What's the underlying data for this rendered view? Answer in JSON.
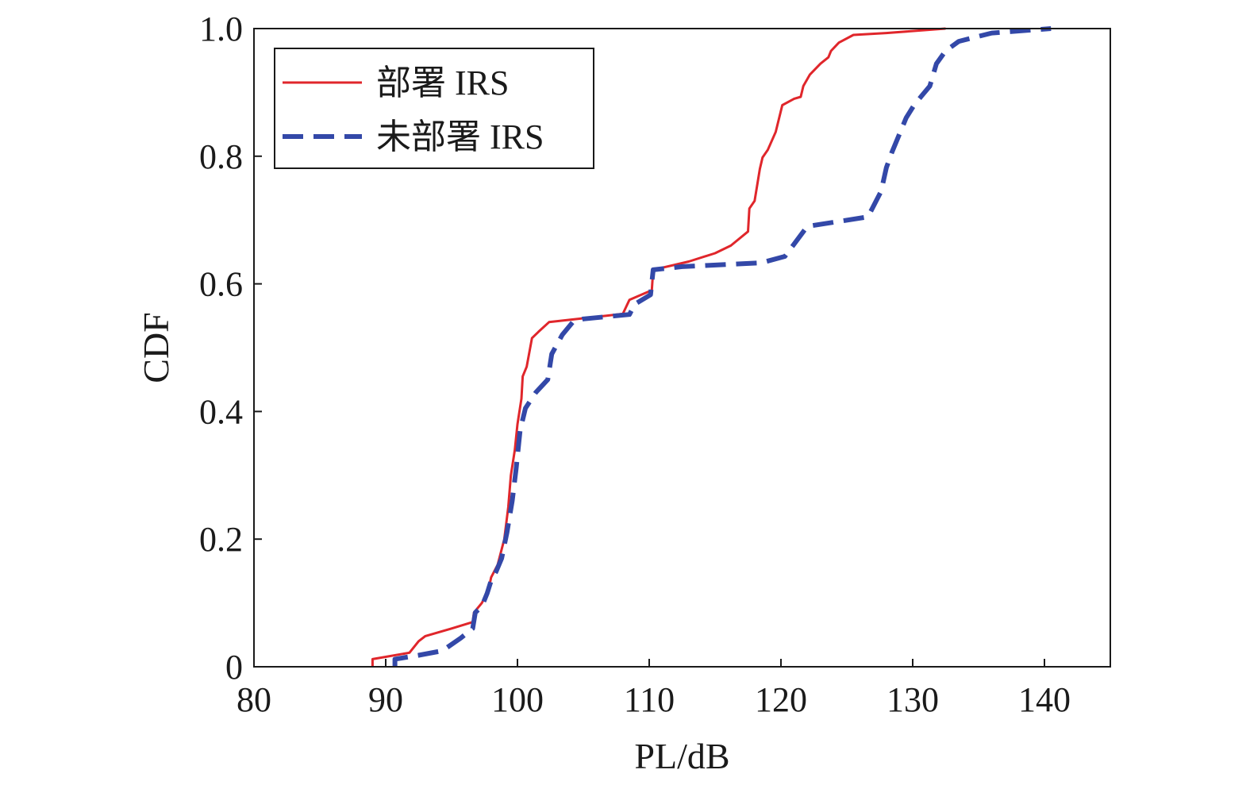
{
  "chart_data": {
    "type": "line",
    "xlabel": "PL/dB",
    "ylabel": "CDF",
    "xlim": [
      80,
      145
    ],
    "ylim": [
      0,
      1
    ],
    "x_ticks": [
      80,
      90,
      100,
      110,
      120,
      130,
      140
    ],
    "y_ticks": [
      0,
      0.2,
      0.4,
      0.6,
      0.8,
      1.0
    ],
    "y_tick_labels": [
      "0",
      "0.2",
      "0.4",
      "0.6",
      "0.8",
      "1.0"
    ],
    "grid": false,
    "legend_position": "top-left",
    "series": [
      {
        "name": "部署 IRS",
        "color": "#e0262b",
        "style": "solid",
        "points": [
          [
            89.0,
            0.0
          ],
          [
            89.0,
            0.012
          ],
          [
            91.8,
            0.022
          ],
          [
            92.5,
            0.04
          ],
          [
            93.0,
            0.048
          ],
          [
            95.0,
            0.06
          ],
          [
            96.6,
            0.07
          ],
          [
            96.7,
            0.085
          ],
          [
            97.3,
            0.1
          ],
          [
            97.8,
            0.12
          ],
          [
            98.0,
            0.14
          ],
          [
            98.5,
            0.16
          ],
          [
            99.0,
            0.2
          ],
          [
            99.3,
            0.25
          ],
          [
            99.5,
            0.3
          ],
          [
            99.8,
            0.34
          ],
          [
            100.0,
            0.38
          ],
          [
            100.3,
            0.42
          ],
          [
            100.4,
            0.455
          ],
          [
            100.7,
            0.47
          ],
          [
            101.1,
            0.515
          ],
          [
            101.6,
            0.525
          ],
          [
            102.4,
            0.54
          ],
          [
            108.0,
            0.553
          ],
          [
            108.5,
            0.575
          ],
          [
            110.2,
            0.59
          ],
          [
            110.3,
            0.622
          ],
          [
            113.0,
            0.635
          ],
          [
            115.0,
            0.648
          ],
          [
            116.2,
            0.66
          ],
          [
            117.5,
            0.682
          ],
          [
            117.6,
            0.718
          ],
          [
            118.0,
            0.73
          ],
          [
            118.4,
            0.78
          ],
          [
            118.6,
            0.798
          ],
          [
            119.0,
            0.81
          ],
          [
            119.6,
            0.838
          ],
          [
            120.1,
            0.88
          ],
          [
            121.0,
            0.89
          ],
          [
            121.5,
            0.893
          ],
          [
            121.7,
            0.91
          ],
          [
            122.2,
            0.928
          ],
          [
            123.0,
            0.945
          ],
          [
            123.6,
            0.955
          ],
          [
            123.8,
            0.965
          ],
          [
            124.4,
            0.978
          ],
          [
            125.5,
            0.99
          ],
          [
            128.0,
            0.993
          ],
          [
            132.5,
            1.0
          ]
        ]
      },
      {
        "name": "未部署 IRS",
        "color": "#3348a8",
        "style": "dashed",
        "points": [
          [
            90.7,
            0.0
          ],
          [
            90.7,
            0.012
          ],
          [
            92.5,
            0.018
          ],
          [
            94.3,
            0.025
          ],
          [
            95.7,
            0.045
          ],
          [
            96.6,
            0.06
          ],
          [
            96.8,
            0.085
          ],
          [
            97.3,
            0.095
          ],
          [
            97.7,
            0.115
          ],
          [
            98.0,
            0.135
          ],
          [
            98.4,
            0.15
          ],
          [
            98.8,
            0.17
          ],
          [
            99.2,
            0.21
          ],
          [
            99.6,
            0.26
          ],
          [
            99.9,
            0.31
          ],
          [
            100.2,
            0.37
          ],
          [
            100.6,
            0.405
          ],
          [
            101.4,
            0.43
          ],
          [
            102.3,
            0.45
          ],
          [
            102.6,
            0.49
          ],
          [
            103.4,
            0.52
          ],
          [
            104.2,
            0.54
          ],
          [
            105.0,
            0.545
          ],
          [
            108.5,
            0.552
          ],
          [
            108.9,
            0.568
          ],
          [
            110.1,
            0.583
          ],
          [
            110.3,
            0.622
          ],
          [
            112.5,
            0.627
          ],
          [
            118.5,
            0.633
          ],
          [
            120.3,
            0.643
          ],
          [
            122.0,
            0.69
          ],
          [
            126.6,
            0.705
          ],
          [
            127.6,
            0.745
          ],
          [
            128.0,
            0.782
          ],
          [
            128.4,
            0.805
          ],
          [
            129.0,
            0.835
          ],
          [
            129.5,
            0.86
          ],
          [
            130.1,
            0.88
          ],
          [
            130.7,
            0.895
          ],
          [
            131.3,
            0.91
          ],
          [
            131.8,
            0.945
          ],
          [
            132.5,
            0.965
          ],
          [
            133.5,
            0.98
          ],
          [
            136.0,
            0.993
          ],
          [
            140.5,
            1.0
          ]
        ]
      }
    ]
  }
}
